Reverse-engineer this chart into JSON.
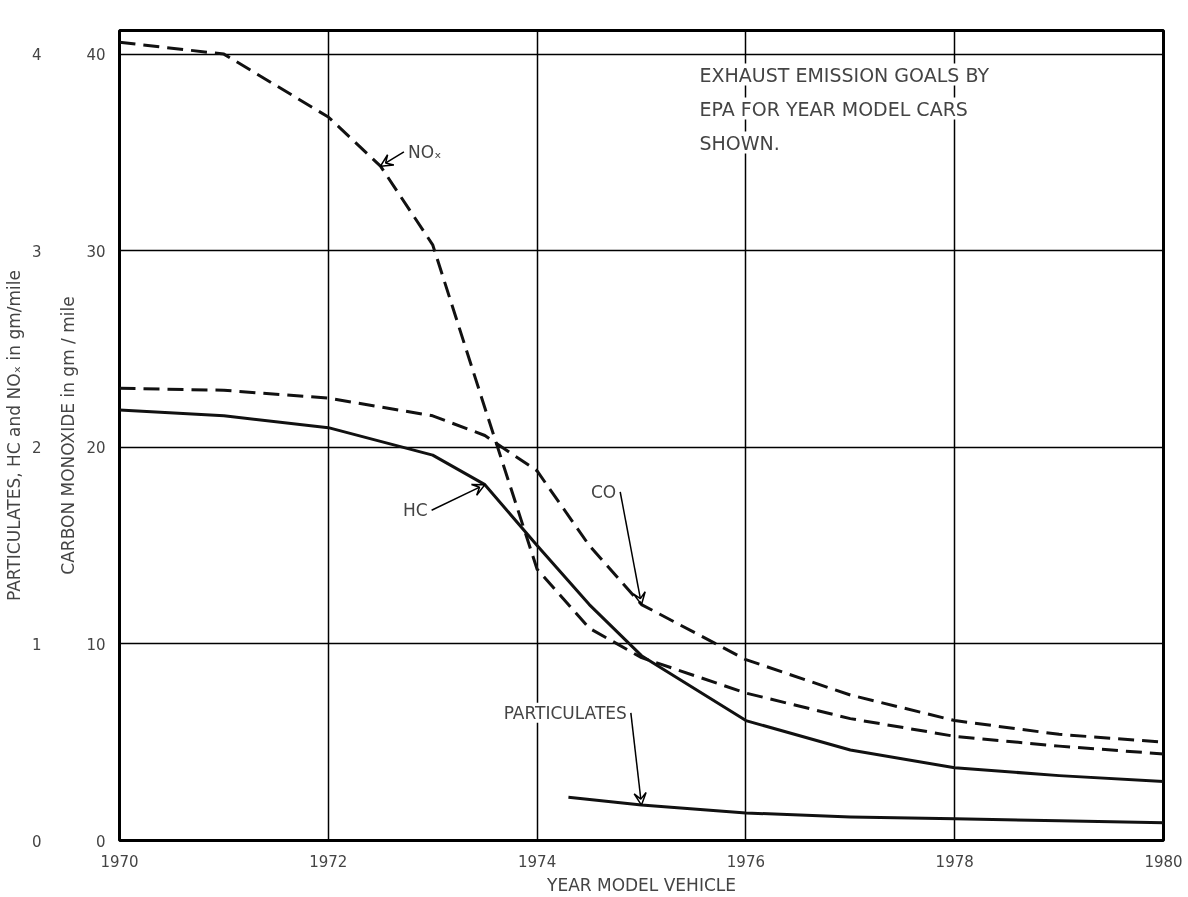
{
  "chart_data": {
    "type": "line",
    "title": "EXHAUST EMISSION GOALS BY EPA FOR YEAR MODEL CARS SHOWN.",
    "xlabel": "YEAR MODEL VEHICLE",
    "ylabel": "PARTICULATES, HC and NOₓ in gm/mile",
    "y2label": "CARBON MONOXIDE in gm / mile",
    "xlim": [
      1970,
      1980
    ],
    "xticks": [
      1970,
      1972,
      1974,
      1976,
      1978,
      1980
    ],
    "ylim": [
      0,
      4.12
    ],
    "yticks": [
      0,
      1,
      2,
      3,
      4
    ],
    "y2lim": [
      0,
      41.2
    ],
    "y2ticks": [
      0,
      10,
      20,
      30,
      40
    ],
    "grid": true,
    "marker": "none",
    "series": [
      {
        "name": "NOₓ",
        "color": "#111111",
        "line_style": "dashed",
        "x": [
          1970,
          1971,
          1972,
          1972.5,
          1973,
          1973.5,
          1974,
          1974.5,
          1975,
          1976,
          1977,
          1978,
          1979,
          1980
        ],
        "values": [
          4.06,
          4.0,
          3.68,
          3.43,
          3.03,
          2.2,
          1.38,
          1.08,
          0.93,
          0.75,
          0.62,
          0.53,
          0.48,
          0.44
        ]
      },
      {
        "name": "CO",
        "color": "#111111",
        "line_style": "dashed",
        "axis": "y2",
        "x": [
          1970,
          1971,
          1972,
          1973,
          1973.5,
          1974,
          1974.5,
          1975,
          1976,
          1977,
          1978,
          1979,
          1980
        ],
        "values": [
          23.0,
          22.9,
          22.5,
          21.6,
          20.6,
          18.8,
          15.0,
          12.0,
          9.2,
          7.4,
          6.1,
          5.4,
          5.0
        ]
      },
      {
        "name": "HC",
        "color": "#111111",
        "line_style": "solid",
        "x": [
          1970,
          1971,
          1972,
          1973,
          1973.5,
          1974,
          1974.5,
          1975,
          1976,
          1977,
          1978,
          1979,
          1980
        ],
        "values": [
          2.19,
          2.16,
          2.1,
          1.96,
          1.81,
          1.5,
          1.2,
          0.94,
          0.61,
          0.46,
          0.37,
          0.33,
          0.3
        ]
      },
      {
        "name": "PARTICULATES",
        "color": "#111111",
        "line_style": "solid",
        "x": [
          1974.3,
          1975,
          1976,
          1977,
          1978,
          1979,
          1980
        ],
        "values": [
          0.22,
          0.18,
          0.14,
          0.12,
          0.11,
          0.1,
          0.09
        ]
      }
    ]
  }
}
